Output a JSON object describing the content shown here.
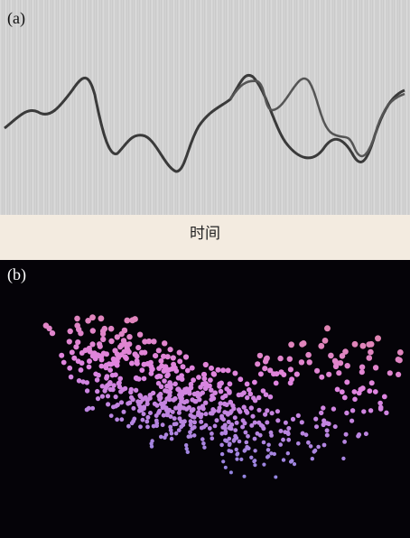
{
  "panel_a": {
    "label": "(a)",
    "x_label": "时间"
  },
  "panel_b": {
    "label": "(b)"
  }
}
